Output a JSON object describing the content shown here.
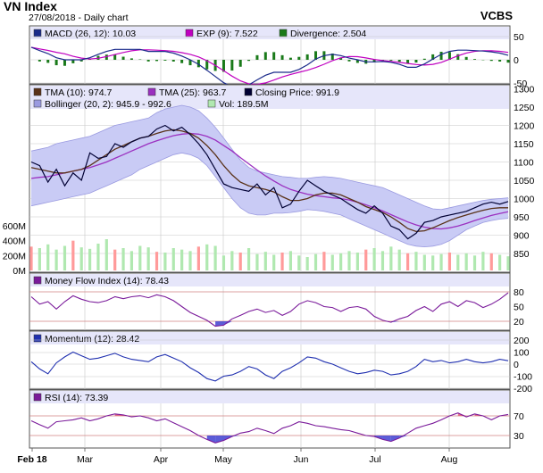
{
  "header": {
    "title": "VN Index",
    "subtitle": "27/08/2018 - Daily chart",
    "source": "VCBS"
  },
  "colors": {
    "background": "#ffffff",
    "panel_header": "#e6e6fa",
    "grid": "#c8c8c8",
    "price": "#000033",
    "tma10": "#5a3218",
    "tma25": "#9b30c0",
    "bollinger_fill": "#c9cbf5",
    "bollinger_line": "#9a9ae0",
    "volume": "#b0e8b0",
    "volume_up": "#ff9a9a",
    "macd": "#1a2a8a",
    "macd_signal": "#c000c0",
    "divergence": "#1a7a1a",
    "mfi": "#7a1a9a",
    "momentum": "#2030b0",
    "rsi": "#7a1a9a",
    "level_line": "#d08080",
    "overbought_fill": "#e05070",
    "oversold_fill": "#4040d0"
  },
  "chart_data": {
    "type": "line",
    "x_tick_labels": [
      "Feb 18",
      "Mar",
      "Apr",
      "May",
      "Jun",
      "Jul",
      "Aug"
    ],
    "panels": {
      "macd": {
        "legend": [
          {
            "label": "MACD (26, 12): 10.03",
            "color": "#1a2a8a"
          },
          {
            "label": "EXP (9): 7.522",
            "color": "#c000c0"
          },
          {
            "label": "Divergence: 2.504",
            "color": "#1a7a1a"
          }
        ],
        "ylim": [
          -50,
          50
        ],
        "y_ticks": [
          "50",
          "0",
          "-50"
        ]
      },
      "price": {
        "legend": [
          {
            "label": "TMA (10): 974.7",
            "color": "#5a3218"
          },
          {
            "label": "TMA (25): 963.7",
            "color": "#9b30c0"
          },
          {
            "label": "Closing Price: 991.9",
            "color": "#000033"
          },
          {
            "label": "Bollinger (20, 2): 945.9 - 992.6",
            "color": "#9a9ae0"
          },
          {
            "label": "Vol: 189.5M",
            "color": "#b0e8b0"
          }
        ],
        "ylim": [
          850,
          1300
        ],
        "y_ticks": [
          "1300",
          "1250",
          "1200",
          "1150",
          "1100",
          "1050",
          "1000",
          "950",
          "900",
          "850"
        ],
        "volume_ticks": [
          "600M",
          "400M",
          "200M",
          "0M"
        ],
        "closing_price": [
          1100,
          1090,
          1045,
          1080,
          1035,
          1070,
          1050,
          1125,
          1110,
          1115,
          1150,
          1140,
          1155,
          1165,
          1170,
          1190,
          1200,
          1185,
          1195,
          1175,
          1150,
          1120,
          1080,
          1040,
          1030,
          1025,
          1020,
          1040,
          1010,
          1030,
          975,
          985,
          1020,
          1050,
          1035,
          1020,
          1010,
          1000,
          985,
          970,
          960,
          980,
          960,
          925,
          915,
          890,
          905,
          935,
          940,
          950,
          955,
          960,
          965,
          975,
          985,
          990,
          985,
          992
        ],
        "tma10": [
          1085,
          1080,
          1075,
          1070,
          1070,
          1075,
          1080,
          1090,
          1105,
          1120,
          1135,
          1145,
          1155,
          1165,
          1170,
          1178,
          1185,
          1188,
          1185,
          1178,
          1165,
          1145,
          1120,
          1090,
          1065,
          1045,
          1035,
          1030,
          1025,
          1018,
          1005,
          995,
          995,
          1000,
          1010,
          1015,
          1015,
          1010,
          1000,
          990,
          978,
          970,
          962,
          950,
          935,
          918,
          910,
          912,
          920,
          930,
          940,
          948,
          955,
          962,
          968,
          973,
          975,
          975
        ],
        "tma25": [
          1055,
          1058,
          1060,
          1065,
          1070,
          1075,
          1080,
          1085,
          1092,
          1100,
          1110,
          1120,
          1130,
          1140,
          1150,
          1158,
          1165,
          1172,
          1176,
          1178,
          1176,
          1170,
          1160,
          1145,
          1130,
          1112,
          1095,
          1078,
          1062,
          1048,
          1035,
          1025,
          1018,
          1012,
          1008,
          1005,
          1002,
          1000,
          996,
          990,
          983,
          975,
          966,
          956,
          946,
          936,
          928,
          922,
          918,
          917,
          920,
          925,
          932,
          940,
          947,
          954,
          959,
          964
        ],
        "bollinger_upper": [
          1130,
          1135,
          1140,
          1150,
          1155,
          1160,
          1165,
          1170,
          1180,
          1190,
          1200,
          1205,
          1210,
          1215,
          1220,
          1235,
          1245,
          1250,
          1255,
          1250,
          1240,
          1220,
          1195,
          1165,
          1135,
          1105,
          1085,
          1075,
          1070,
          1065,
          1060,
          1058,
          1055,
          1055,
          1058,
          1060,
          1058,
          1055,
          1050,
          1045,
          1040,
          1035,
          1030,
          1020,
          1010,
          1000,
          990,
          980,
          972,
          970,
          975,
          980,
          985,
          990,
          995,
          998,
          1000,
          1002
        ],
        "bollinger_lower": [
          980,
          985,
          990,
          995,
          1000,
          1005,
          1010,
          1015,
          1025,
          1035,
          1045,
          1055,
          1065,
          1080,
          1090,
          1100,
          1110,
          1120,
          1125,
          1120,
          1110,
          1090,
          1060,
          1030,
          1000,
          975,
          960,
          955,
          955,
          960,
          960,
          962,
          965,
          970,
          968,
          965,
          960,
          955,
          945,
          935,
          925,
          915,
          905,
          895,
          885,
          875,
          870,
          868,
          870,
          875,
          885,
          900,
          915,
          925,
          935,
          940,
          944,
          946
        ],
        "volume_m": [
          320,
          300,
          350,
          280,
          330,
          400,
          310,
          290,
          360,
          420,
          280,
          300,
          260,
          330,
          310,
          250,
          240,
          300,
          280,
          260,
          320,
          350,
          330,
          200,
          260,
          240,
          300,
          220,
          250,
          210,
          240,
          260,
          200,
          180,
          220,
          250,
          210,
          230,
          260,
          240,
          280,
          300,
          260,
          320,
          280,
          230,
          250,
          210,
          200,
          220,
          240,
          210,
          230,
          200,
          250,
          230,
          210,
          190
        ]
      },
      "mfi": {
        "legend": [
          {
            "label": "Money Flow Index (14): 78.43",
            "color": "#7a1a9a"
          }
        ],
        "ylim": [
          0,
          100
        ],
        "y_ticks": [
          "80",
          "50",
          "20"
        ],
        "values": [
          70,
          55,
          60,
          45,
          60,
          72,
          65,
          60,
          58,
          62,
          70,
          66,
          70,
          72,
          68,
          74,
          70,
          62,
          50,
          38,
          30,
          22,
          10,
          12,
          25,
          32,
          40,
          45,
          38,
          42,
          32,
          40,
          55,
          62,
          58,
          50,
          48,
          40,
          48,
          50,
          45,
          30,
          22,
          18,
          25,
          30,
          42,
          50,
          40,
          55,
          60,
          50,
          62,
          58,
          48,
          55,
          65,
          78
        ]
      },
      "momentum": {
        "legend": [
          {
            "label": "Momentum (12): 28.42",
            "color": "#2030b0"
          }
        ],
        "ylim": [
          -200,
          200
        ],
        "y_ticks": [
          "200",
          "100",
          "0",
          "-100",
          "-200"
        ],
        "values": [
          20,
          -40,
          -80,
          10,
          60,
          100,
          70,
          40,
          50,
          70,
          90,
          60,
          40,
          30,
          20,
          60,
          80,
          50,
          20,
          -30,
          -70,
          -120,
          -140,
          -100,
          -90,
          -60,
          -20,
          -40,
          -90,
          -120,
          -60,
          -30,
          10,
          60,
          50,
          20,
          0,
          -30,
          -60,
          -80,
          -70,
          -50,
          -60,
          -90,
          -80,
          -60,
          -20,
          40,
          20,
          30,
          10,
          20,
          40,
          20,
          10,
          20,
          40,
          28
        ]
      },
      "rsi": {
        "legend": [
          {
            "label": "RSI (14): 73.39",
            "color": "#7a1a9a"
          }
        ],
        "ylim": [
          0,
          100
        ],
        "y_ticks": [
          "70",
          "30"
        ],
        "values": [
          60,
          52,
          45,
          58,
          60,
          62,
          66,
          60,
          64,
          70,
          74,
          72,
          68,
          70,
          66,
          60,
          64,
          56,
          48,
          40,
          30,
          22,
          15,
          20,
          28,
          35,
          38,
          45,
          40,
          34,
          45,
          50,
          58,
          55,
          50,
          48,
          45,
          42,
          40,
          35,
          30,
          28,
          22,
          18,
          25,
          35,
          45,
          50,
          55,
          62,
          70,
          76,
          68,
          74,
          70,
          62,
          70,
          73
        ]
      }
    }
  }
}
